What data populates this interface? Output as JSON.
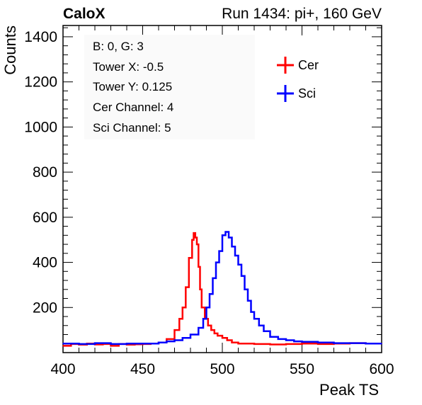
{
  "header": {
    "left": "CaloX",
    "right": "Run 1434: pi+, 160 GeV"
  },
  "info_box": {
    "lines": [
      "B: 0, G: 3",
      "Tower X: -0.5",
      "Tower Y: 0.125",
      "Cer Channel: 4",
      "Sci Channel: 5"
    ]
  },
  "chart_data": {
    "type": "line",
    "xlabel": "Peak TS",
    "ylabel": "Counts",
    "xlim": [
      400,
      600
    ],
    "ylim": [
      0,
      1450
    ],
    "x_ticks": [
      400,
      450,
      500,
      550,
      600
    ],
    "y_ticks": [
      200,
      400,
      600,
      800,
      1000,
      1200,
      1400
    ],
    "legend": {
      "placement": "top-right"
    },
    "series": [
      {
        "name": "Cer",
        "color": "#ff0000",
        "points": [
          [
            400,
            30
          ],
          [
            405,
            38
          ],
          [
            410,
            35
          ],
          [
            415,
            40
          ],
          [
            420,
            36
          ],
          [
            425,
            38
          ],
          [
            430,
            30
          ],
          [
            435,
            38
          ],
          [
            440,
            35
          ],
          [
            445,
            37
          ],
          [
            450,
            38
          ],
          [
            455,
            40
          ],
          [
            460,
            45
          ],
          [
            465,
            60
          ],
          [
            470,
            100
          ],
          [
            473,
            150
          ],
          [
            475,
            200
          ],
          [
            477,
            290
          ],
          [
            479,
            420
          ],
          [
            481,
            500
          ],
          [
            482,
            530
          ],
          [
            483,
            510
          ],
          [
            484,
            480
          ],
          [
            485,
            380
          ],
          [
            486,
            280
          ],
          [
            487,
            200
          ],
          [
            489,
            150
          ],
          [
            491,
            120
          ],
          [
            493,
            100
          ],
          [
            495,
            85
          ],
          [
            497,
            75
          ],
          [
            500,
            65
          ],
          [
            503,
            55
          ],
          [
            506,
            45
          ],
          [
            510,
            40
          ],
          [
            520,
            38
          ],
          [
            530,
            36
          ],
          [
            540,
            38
          ],
          [
            550,
            40
          ],
          [
            560,
            38
          ],
          [
            570,
            40
          ],
          [
            580,
            42
          ],
          [
            590,
            40
          ],
          [
            600,
            40
          ]
        ]
      },
      {
        "name": "Sci",
        "color": "#0000ff",
        "points": [
          [
            400,
            40
          ],
          [
            410,
            38
          ],
          [
            420,
            42
          ],
          [
            430,
            38
          ],
          [
            440,
            40
          ],
          [
            450,
            40
          ],
          [
            460,
            45
          ],
          [
            465,
            50
          ],
          [
            470,
            55
          ],
          [
            475,
            65
          ],
          [
            480,
            80
          ],
          [
            485,
            110
          ],
          [
            488,
            150
          ],
          [
            490,
            200
          ],
          [
            492,
            260
          ],
          [
            494,
            330
          ],
          [
            496,
            400
          ],
          [
            498,
            450
          ],
          [
            500,
            520
          ],
          [
            502,
            535
          ],
          [
            504,
            510
          ],
          [
            506,
            470
          ],
          [
            508,
            430
          ],
          [
            510,
            390
          ],
          [
            512,
            340
          ],
          [
            514,
            280
          ],
          [
            516,
            230
          ],
          [
            518,
            180
          ],
          [
            520,
            150
          ],
          [
            523,
            120
          ],
          [
            526,
            95
          ],
          [
            530,
            70
          ],
          [
            535,
            60
          ],
          [
            540,
            55
          ],
          [
            545,
            50
          ],
          [
            550,
            48
          ],
          [
            560,
            45
          ],
          [
            570,
            42
          ],
          [
            580,
            42
          ],
          [
            590,
            40
          ],
          [
            600,
            40
          ]
        ]
      }
    ]
  }
}
